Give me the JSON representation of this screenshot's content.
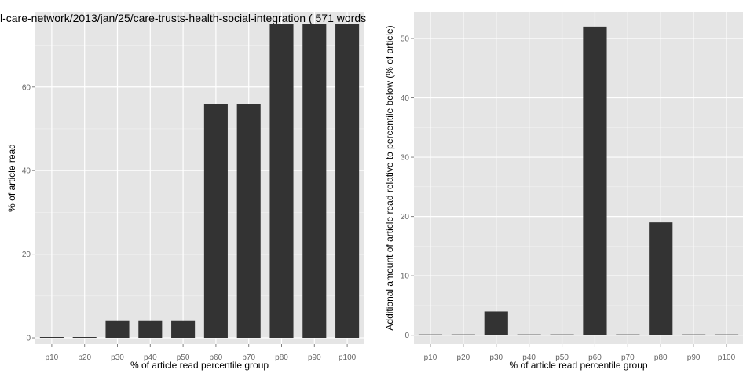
{
  "chart_data": [
    {
      "type": "bar",
      "title": "l-care-network/2013/jan/25/care-trusts-health-social-integration ( 571 words",
      "xlabel": "% of article read percentile group",
      "ylabel": "% of article read",
      "categories": [
        "p10",
        "p20",
        "p30",
        "p40",
        "p50",
        "p60",
        "p70",
        "p80",
        "p90",
        "p100"
      ],
      "values": [
        0,
        0,
        4,
        4,
        4,
        56,
        56,
        75,
        75,
        75
      ],
      "ylim": [
        -1.5,
        78
      ],
      "yticks": [
        0,
        20,
        40,
        60
      ],
      "ytick_labels": [
        "0",
        "20",
        "40",
        "60"
      ],
      "grid": true,
      "colors": {
        "bar": "#333333",
        "panel": "#e5e5e5",
        "grid_major": "#ffffff",
        "grid_minor": "#f2f2f2"
      }
    },
    {
      "type": "bar",
      "title": "",
      "xlabel": "% of article read percentile group",
      "ylabel": "Additional amount of article read relative to percentile below (% of article)",
      "categories": [
        "p10",
        "p20",
        "p30",
        "p40",
        "p50",
        "p60",
        "p70",
        "p80",
        "p90",
        "p100"
      ],
      "values": [
        0,
        0,
        4,
        0,
        0,
        52,
        0,
        19,
        0,
        0
      ],
      "ylim": [
        -1.5,
        54.5
      ],
      "yticks": [
        0,
        10,
        20,
        30,
        40,
        50
      ],
      "ytick_labels": [
        "0",
        "10",
        "20",
        "30",
        "40",
        "50"
      ],
      "grid": true,
      "colors": {
        "bar": "#333333",
        "panel": "#e5e5e5",
        "grid_major": "#ffffff",
        "grid_minor": "#f2f2f2"
      }
    }
  ]
}
